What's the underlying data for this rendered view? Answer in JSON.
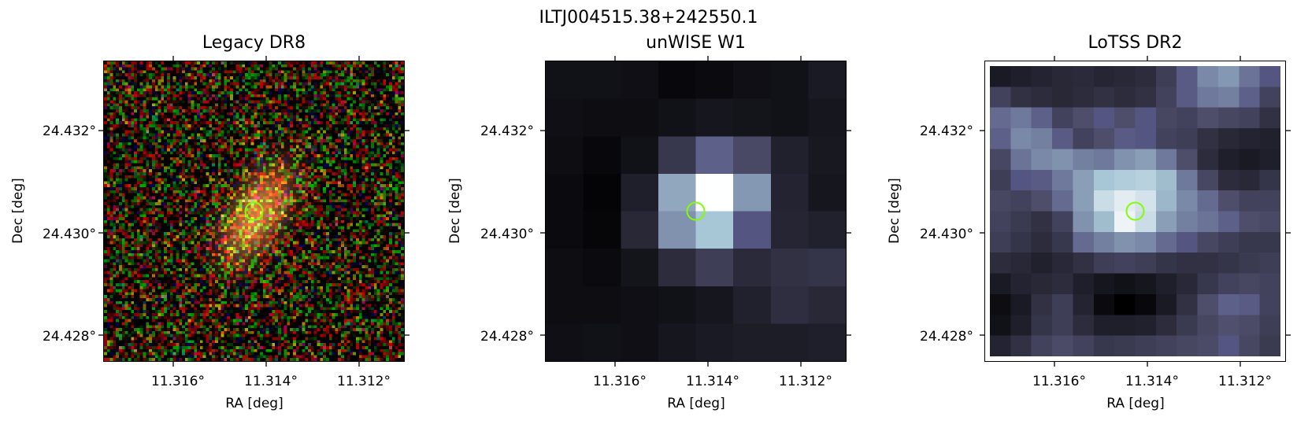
{
  "figure": {
    "title": "ILTJ004515.38+242550.1"
  },
  "axes_labels": {
    "xlabel": "RA [deg]",
    "ylabel": "Dec [deg]"
  },
  "ticks": {
    "x": [
      "11.316°",
      "11.314°",
      "11.312°"
    ],
    "y": [
      "24.432°",
      "24.430°",
      "24.428°"
    ]
  },
  "panels": [
    {
      "title": "Legacy DR8",
      "colormap": "rgb-noise"
    },
    {
      "title": "unWISE W1",
      "colormap": "bone"
    },
    {
      "title": "LoTSS DR2",
      "colormap": "bone"
    }
  ],
  "marker": {
    "shape": "circle",
    "color": "#7fff00"
  },
  "unwise_pixels": [
    [
      0.08,
      0.08,
      0.07,
      0.04,
      0.05,
      0.07,
      0.08,
      0.12
    ],
    [
      0.07,
      0.06,
      0.06,
      0.08,
      0.1,
      0.09,
      0.08,
      0.1
    ],
    [
      0.06,
      0.04,
      0.08,
      0.25,
      0.42,
      0.33,
      0.15,
      0.11
    ],
    [
      0.05,
      0.02,
      0.14,
      0.65,
      1.0,
      0.6,
      0.16,
      0.1
    ],
    [
      0.05,
      0.03,
      0.18,
      0.58,
      0.75,
      0.38,
      0.17,
      0.15
    ],
    [
      0.06,
      0.05,
      0.09,
      0.2,
      0.28,
      0.19,
      0.22,
      0.24
    ],
    [
      0.06,
      0.06,
      0.07,
      0.08,
      0.1,
      0.15,
      0.21,
      0.18
    ],
    [
      0.07,
      0.08,
      0.07,
      0.1,
      0.12,
      0.13,
      0.13,
      0.14
    ]
  ],
  "lotss_pixels": [
    [
      0.12,
      0.14,
      0.16,
      0.18,
      0.19,
      0.17,
      0.18,
      0.2,
      0.28,
      0.4,
      0.55,
      0.6,
      0.48,
      0.38
    ],
    [
      0.3,
      0.22,
      0.2,
      0.18,
      0.2,
      0.22,
      0.2,
      0.22,
      0.3,
      0.4,
      0.5,
      0.52,
      0.42,
      0.3
    ],
    [
      0.45,
      0.5,
      0.42,
      0.3,
      0.35,
      0.38,
      0.35,
      0.38,
      0.32,
      0.3,
      0.35,
      0.32,
      0.3,
      0.22
    ],
    [
      0.42,
      0.55,
      0.52,
      0.4,
      0.3,
      0.35,
      0.4,
      0.38,
      0.3,
      0.28,
      0.22,
      0.18,
      0.16,
      0.15
    ],
    [
      0.32,
      0.48,
      0.55,
      0.58,
      0.52,
      0.5,
      0.58,
      0.62,
      0.5,
      0.35,
      0.2,
      0.14,
      0.12,
      0.14
    ],
    [
      0.28,
      0.38,
      0.4,
      0.5,
      0.62,
      0.75,
      0.78,
      0.8,
      0.72,
      0.5,
      0.32,
      0.2,
      0.18,
      0.24
    ],
    [
      0.32,
      0.3,
      0.35,
      0.45,
      0.62,
      0.85,
      0.92,
      0.88,
      0.7,
      0.55,
      0.45,
      0.35,
      0.3,
      0.3
    ],
    [
      0.3,
      0.26,
      0.22,
      0.3,
      0.58,
      0.72,
      0.95,
      0.85,
      0.62,
      0.52,
      0.48,
      0.42,
      0.35,
      0.33
    ],
    [
      0.28,
      0.24,
      0.2,
      0.25,
      0.45,
      0.52,
      0.58,
      0.55,
      0.45,
      0.38,
      0.32,
      0.28,
      0.25,
      0.25
    ],
    [
      0.2,
      0.18,
      0.15,
      0.18,
      0.22,
      0.28,
      0.3,
      0.28,
      0.24,
      0.22,
      0.22,
      0.24,
      0.26,
      0.28
    ],
    [
      0.12,
      0.16,
      0.18,
      0.2,
      0.14,
      0.1,
      0.08,
      0.1,
      0.14,
      0.18,
      0.25,
      0.3,
      0.32,
      0.3
    ],
    [
      0.06,
      0.12,
      0.22,
      0.28,
      0.16,
      0.05,
      0.0,
      0.04,
      0.12,
      0.22,
      0.35,
      0.42,
      0.4,
      0.3
    ],
    [
      0.08,
      0.14,
      0.24,
      0.28,
      0.2,
      0.14,
      0.14,
      0.15,
      0.2,
      0.26,
      0.32,
      0.36,
      0.34,
      0.28
    ],
    [
      0.16,
      0.22,
      0.3,
      0.34,
      0.3,
      0.25,
      0.26,
      0.28,
      0.3,
      0.32,
      0.34,
      0.38,
      0.32,
      0.26
    ]
  ]
}
